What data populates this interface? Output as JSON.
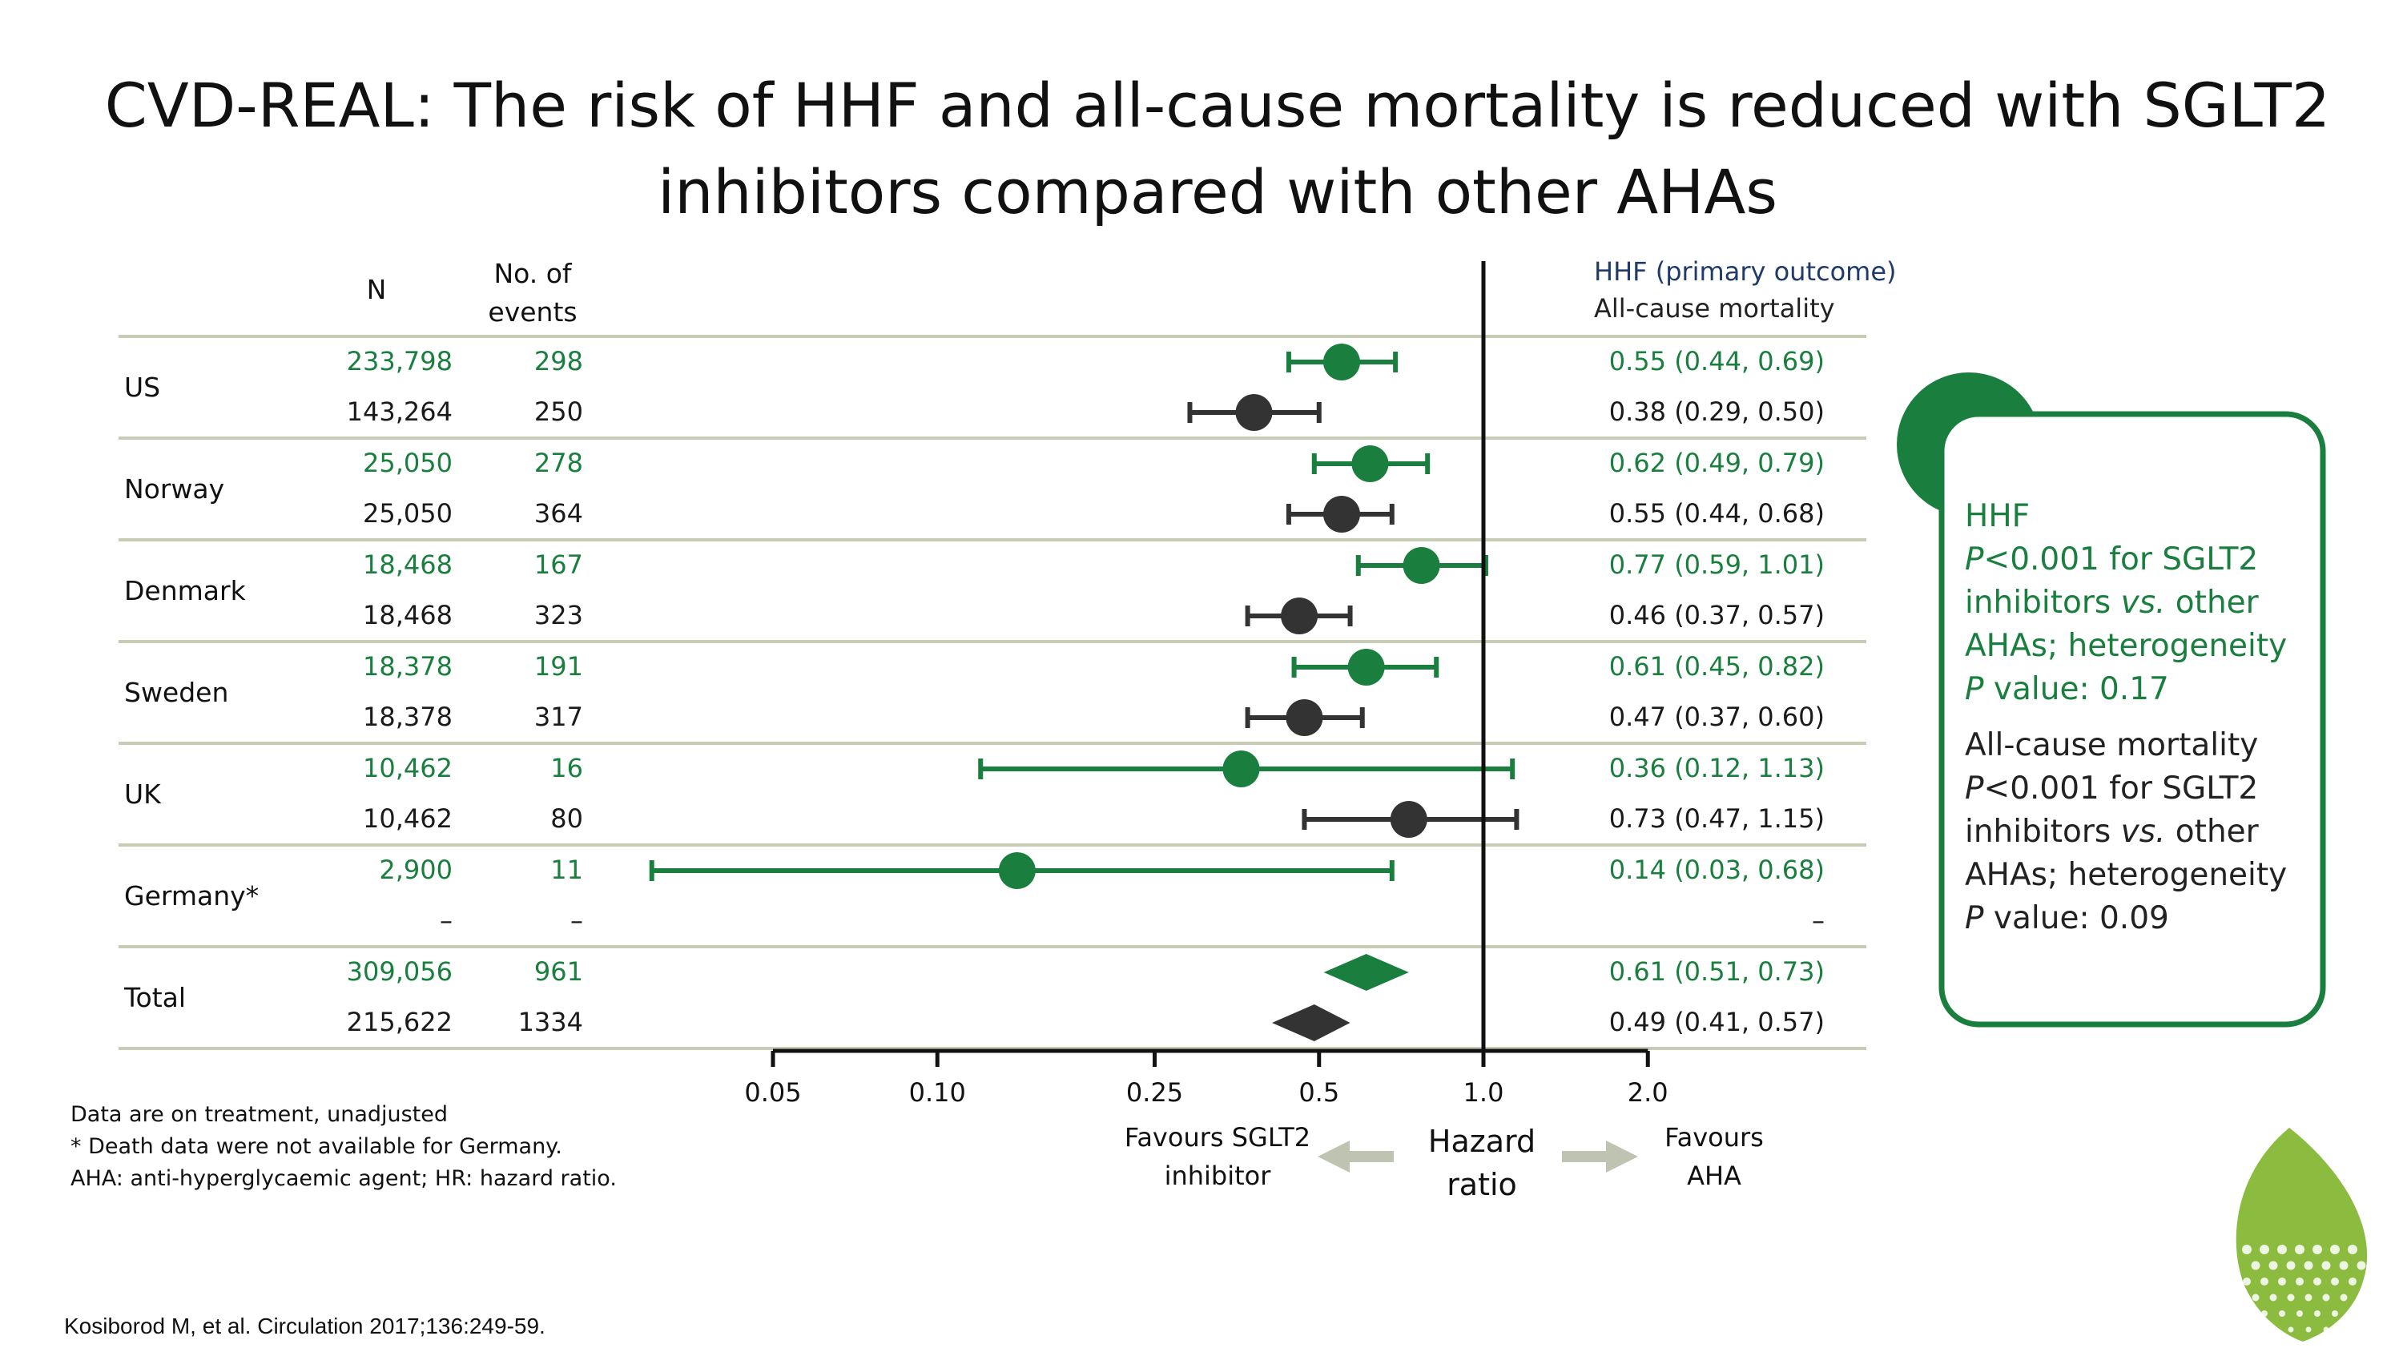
{
  "title_line1": "CVD-REAL: The risk of HHF and all-cause mortality is reduced with SGLT2",
  "title_line2": "inhibitors compared with other AHAs",
  "columns": {
    "n": "N",
    "events_line1": "No. of",
    "events_line2": "events"
  },
  "legend": {
    "hhf": "HHF (primary outcome)",
    "acm": "All-cause mortality"
  },
  "colors": {
    "hhf": "#1a7f3e",
    "acm": "#333333",
    "row_rule": "#c7cdb4",
    "arrow": "#bfc4b2"
  },
  "chart_data": {
    "type": "forest",
    "x_scale": "log",
    "xlim": [
      0.05,
      2.0
    ],
    "ticks": [
      "0.05",
      "0.10",
      "0.25",
      "0.5",
      "1.0",
      "2.0"
    ],
    "tick_values": [
      0.05,
      0.1,
      0.25,
      0.5,
      1.0,
      2.0
    ],
    "reference_line": 1.0,
    "xlabel_line1": "Hazard",
    "xlabel_line2": "ratio",
    "left_label_line1": "Favours SGLT2",
    "left_label_line2": "inhibitor",
    "right_label_line1": "Favours",
    "right_label_line2": "AHA",
    "rows": [
      {
        "country": "US",
        "hhf": {
          "n": "233,798",
          "events": "298",
          "hr": 0.55,
          "lo": 0.44,
          "hi": 0.69,
          "text": "0.55 (0.44, 0.69)"
        },
        "acm": {
          "n": "143,264",
          "events": "250",
          "hr": 0.38,
          "lo": 0.29,
          "hi": 0.5,
          "text": "0.38 (0.29, 0.50)"
        }
      },
      {
        "country": "Norway",
        "hhf": {
          "n": "25,050",
          "events": "278",
          "hr": 0.62,
          "lo": 0.49,
          "hi": 0.79,
          "text": "0.62 (0.49, 0.79)"
        },
        "acm": {
          "n": "25,050",
          "events": "364",
          "hr": 0.55,
          "lo": 0.44,
          "hi": 0.68,
          "text": "0.55 (0.44, 0.68)"
        }
      },
      {
        "country": "Denmark",
        "hhf": {
          "n": "18,468",
          "events": "167",
          "hr": 0.77,
          "lo": 0.59,
          "hi": 1.01,
          "text": "0.77 (0.59, 1.01)"
        },
        "acm": {
          "n": "18,468",
          "events": "323",
          "hr": 0.46,
          "lo": 0.37,
          "hi": 0.57,
          "text": "0.46 (0.37, 0.57)"
        }
      },
      {
        "country": "Sweden",
        "hhf": {
          "n": "18,378",
          "events": "191",
          "hr": 0.61,
          "lo": 0.45,
          "hi": 0.82,
          "text": "0.61 (0.45, 0.82)"
        },
        "acm": {
          "n": "18,378",
          "events": "317",
          "hr": 0.47,
          "lo": 0.37,
          "hi": 0.6,
          "text": "0.47 (0.37, 0.60)"
        }
      },
      {
        "country": "UK",
        "hhf": {
          "n": "10,462",
          "events": "16",
          "hr": 0.36,
          "lo": 0.12,
          "hi": 1.13,
          "text": "0.36 (0.12, 1.13)"
        },
        "acm": {
          "n": "10,462",
          "events": "80",
          "hr": 0.73,
          "lo": 0.47,
          "hi": 1.15,
          "text": "0.73 (0.47, 1.15)"
        }
      },
      {
        "country": "Germany*",
        "hhf": {
          "n": "2,900",
          "events": "11",
          "hr": 0.14,
          "lo": 0.03,
          "hi": 0.68,
          "text": "0.14 (0.03, 0.68)"
        },
        "acm": {
          "n": "–",
          "events": "–",
          "hr": null,
          "lo": null,
          "hi": null,
          "text": "–"
        }
      },
      {
        "country": "Total",
        "total": true,
        "hhf": {
          "n": "309,056",
          "events": "961",
          "hr": 0.61,
          "lo": 0.51,
          "hi": 0.73,
          "text": "0.61 (0.51, 0.73)"
        },
        "acm": {
          "n": "215,622",
          "events": "1334",
          "hr": 0.49,
          "lo": 0.41,
          "hi": 0.57,
          "text": "0.49 (0.41, 0.57)"
        }
      }
    ]
  },
  "callout": {
    "hhf_heading": "HHF",
    "hhf_p": "P",
    "hhf_line1": "<0.001 for SGLT2",
    "hhf_line2_a": "inhibitors ",
    "hhf_line2_b": "vs.",
    "hhf_line2_c": " other",
    "hhf_line3": "AHAs; heterogeneity",
    "hhf_line4_p": "P",
    "hhf_line4": " value: 0.17",
    "acm_heading": "All-cause mortality",
    "acm_p": "P",
    "acm_line1": "<0.001 for SGLT2",
    "acm_line2_a": "inhibitors ",
    "acm_line2_b": "vs.",
    "acm_line2_c": " other",
    "acm_line3": "AHAs;  heterogeneity",
    "acm_line4_p": "P",
    "acm_line4": " value: 0.09"
  },
  "footnotes": {
    "line1": "Data are on treatment, unadjusted",
    "line2": "* Death data were not available for Germany.",
    "line3": "AHA: anti-hyperglycaemic agent; HR: hazard ratio."
  },
  "reference": "Kosiborod M, et al. Circulation 2017;136:249-59."
}
